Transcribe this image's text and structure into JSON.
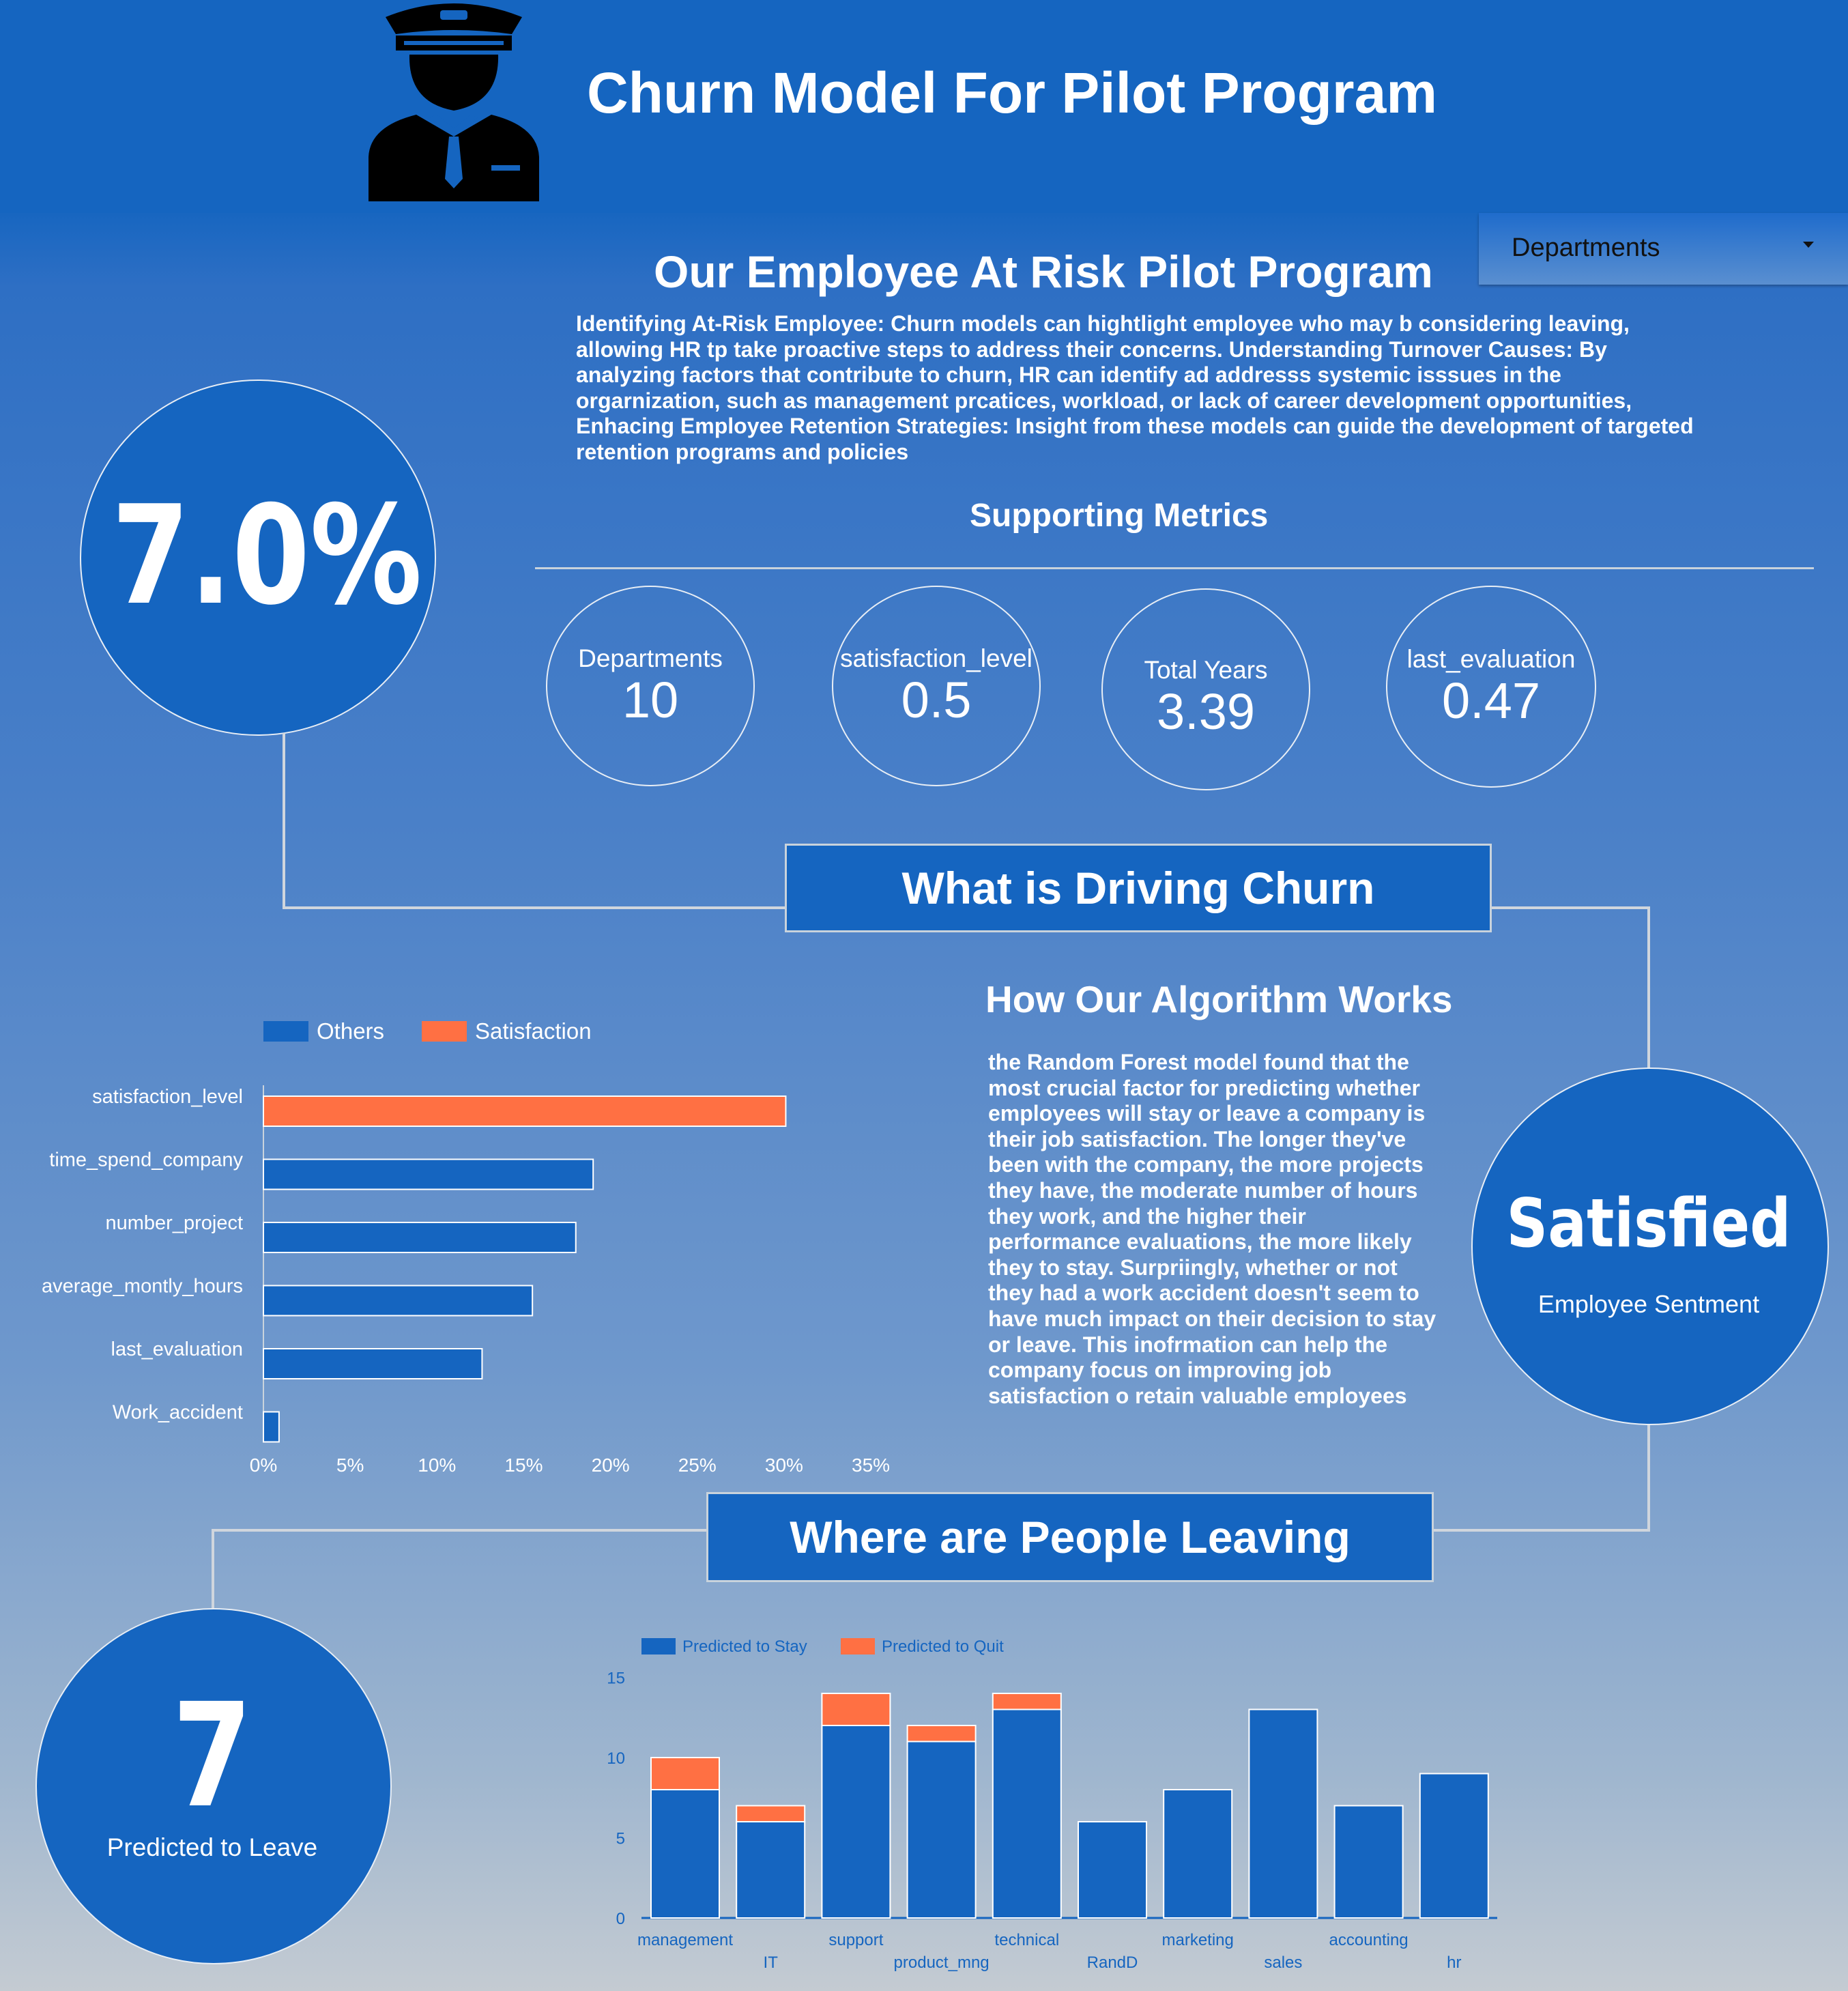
{
  "header": {
    "title": "Churn Model For Pilot Program",
    "pilot_icon": "pilot-icon",
    "background": "#1565c0"
  },
  "dropdown": {
    "label": "Departments"
  },
  "program": {
    "title": "Our Employee At Risk Pilot Program",
    "description": "Identifying At-Risk Employee: Churn models can hightlight employee who may b considering leaving, allowing HR tp take proactive steps to address their concerns. Understanding Turnover Causes: By analyzing factors that contribute to churn, HR can identify ad addresss systemic isssues in the orgarnization, such as management prcatices, workload, or lack of career development opportunities, Enhacing Employee Retention Strategies: Insight from these models can guide the development of targeted retention programs and policies"
  },
  "churn_rate": {
    "value": "7.0%"
  },
  "metrics": {
    "title": "Supporting Metrics",
    "items": [
      {
        "label": "Departments",
        "value": "10"
      },
      {
        "label": "satisfaction_level",
        "value": "0.5"
      },
      {
        "label": "Total Years",
        "value": "3.39"
      },
      {
        "label": "last_evaluation",
        "value": "0.47"
      }
    ]
  },
  "driving": {
    "title": "What is Driving Churn"
  },
  "algorithm": {
    "title": "How Our Algorithm Works",
    "text": "the Random Forest model found that the most crucial factor for predicting whether employees will stay or leave a company is their job satisfaction. The longer they've been with the company, the more projects they have, the moderate number of hours they work, and the higher their performance evaluations, the more likely they to stay. Surpriingly, whether or not they had a work accident doesn't seem to have much impact on their decision to stay or leave. This inofrmation can help the company focus on improving job satisfaction o retain valuable employees"
  },
  "sentiment": {
    "value": "Satisfied",
    "label": "Employee Sentment"
  },
  "leaving": {
    "title": "Where are People Leaving"
  },
  "predicted": {
    "value": "7",
    "label": "Predicted to Leave"
  },
  "colors": {
    "accent": "#1565c0",
    "highlight": "#ff7043"
  },
  "chart_data": [
    {
      "type": "bar",
      "orientation": "horizontal",
      "categories": [
        "satisfaction_level",
        "time_spend_company",
        "number_project",
        "average_montly_hours",
        "last_evaluation",
        "Work_accident"
      ],
      "series": [
        {
          "name": "Others",
          "color": "#1565c0",
          "values": [
            null,
            19,
            18,
            15.5,
            12.6,
            0.9
          ]
        },
        {
          "name": "Satisfaction",
          "color": "#ff7043",
          "values": [
            30.1,
            null,
            null,
            null,
            null,
            null
          ]
        }
      ],
      "xlim": [
        0,
        35
      ],
      "xticks": [
        "0%",
        "5%",
        "10%",
        "15%",
        "20%",
        "25%",
        "30%",
        "35%"
      ],
      "legend": "top-left"
    },
    {
      "type": "bar",
      "stacked": true,
      "categories": [
        "management",
        "IT",
        "support",
        "product_mng",
        "technical",
        "RandD",
        "marketing",
        "sales",
        "accounting",
        "hr"
      ],
      "series": [
        {
          "name": "Predicted to Stay",
          "color": "#1565c0",
          "values": [
            8,
            6,
            12,
            11,
            13,
            6,
            8,
            13,
            7,
            9
          ]
        },
        {
          "name": "Predicted to Quit",
          "color": "#ff7043",
          "values": [
            2,
            1,
            2,
            1,
            1,
            0,
            0,
            0,
            0,
            0
          ]
        }
      ],
      "ylim": [
        0,
        15
      ],
      "yticks": [
        "0",
        "5",
        "10",
        "15"
      ],
      "legend": "top-left"
    }
  ]
}
